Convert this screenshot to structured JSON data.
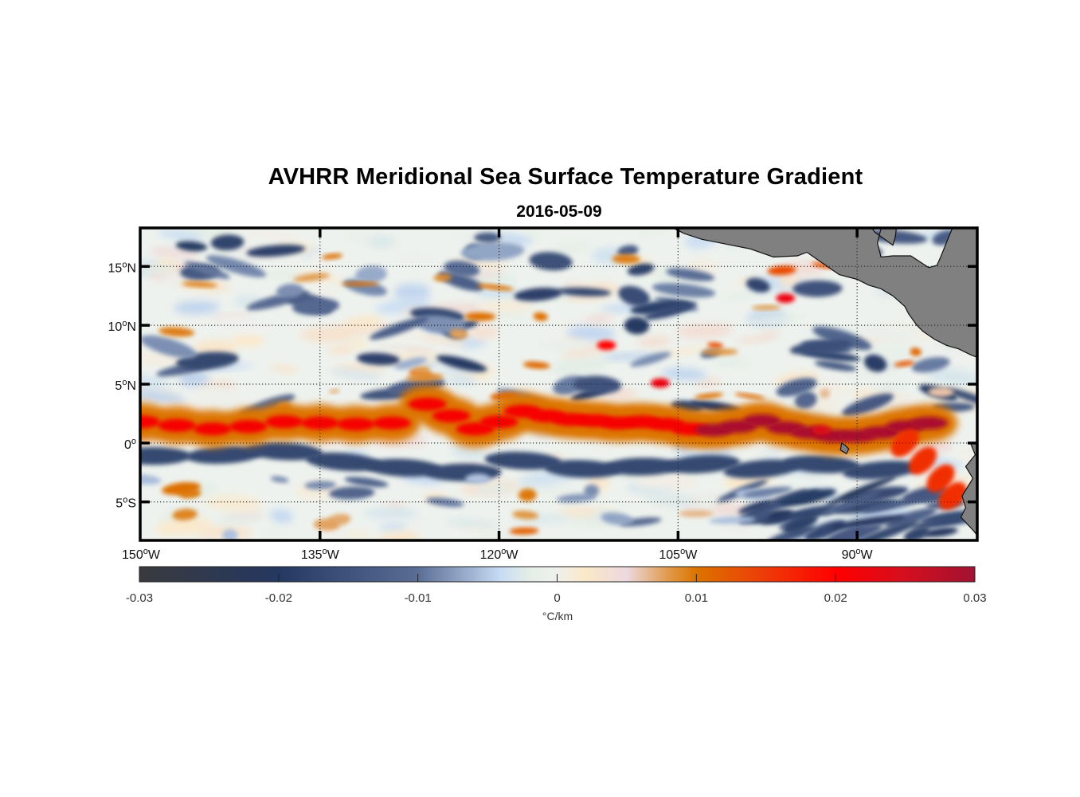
{
  "figure": {
    "title": "AVHRR Meridional Sea Surface Temperature Gradient",
    "subtitle": "2016-05-09"
  },
  "map": {
    "projection": "equirectangular",
    "lon_range_deg": [
      -150,
      -80
    ],
    "lat_range_deg": [
      -8.2,
      18.2
    ],
    "grid": true,
    "grid_style": "dotted",
    "land_color": "#808080",
    "frame_color": "#000000",
    "lat_ticks": [
      {
        "value": 15,
        "label": "15",
        "suffix": "N"
      },
      {
        "value": 10,
        "label": "10",
        "suffix": "N"
      },
      {
        "value": 5,
        "label": "5",
        "suffix": "N"
      },
      {
        "value": 0,
        "label": "0",
        "suffix": ""
      },
      {
        "value": -5,
        "label": "5",
        "suffix": "S"
      }
    ],
    "lon_ticks": [
      {
        "value": -150,
        "label": "150",
        "suffix": "W"
      },
      {
        "value": -135,
        "label": "135",
        "suffix": "W"
      },
      {
        "value": -120,
        "label": "120",
        "suffix": "W"
      },
      {
        "value": -105,
        "label": "105",
        "suffix": "W"
      },
      {
        "value": -90,
        "label": "90",
        "suffix": "W"
      }
    ],
    "degree_symbol": "o",
    "features": {
      "equatorial_front": {
        "description": "Strong positive gradient band (warm front) near 1-2°N across basin",
        "approx_value": 0.025
      },
      "south_negative_band": {
        "description": "Negative gradient band just south of equator",
        "approx_value": -0.02
      }
    }
  },
  "colorbar": {
    "label": "°C/km",
    "range": [
      -0.03,
      0.03
    ],
    "ticks": [
      {
        "value": -0.03,
        "label": "-0.03"
      },
      {
        "value": -0.02,
        "label": "-0.02"
      },
      {
        "value": -0.01,
        "label": "-0.01"
      },
      {
        "value": 0,
        "label": "0"
      },
      {
        "value": 0.01,
        "label": "0.01"
      },
      {
        "value": 0.02,
        "label": "0.02"
      },
      {
        "value": 0.03,
        "label": "0.03"
      }
    ],
    "color_stops": [
      {
        "value": -0.03,
        "color": "#3a3a3e"
      },
      {
        "value": -0.02,
        "color": "#243861"
      },
      {
        "value": -0.01,
        "color": "#5a6d95"
      },
      {
        "value": -0.004,
        "color": "#c8dcf4"
      },
      {
        "value": -0.002,
        "color": "#e4eee6"
      },
      {
        "value": 0,
        "color": "#f0f0ee"
      },
      {
        "value": 0.002,
        "color": "#fbe8c8"
      },
      {
        "value": 0.005,
        "color": "#ecd9de"
      },
      {
        "value": 0.008,
        "color": "#e09a4a"
      },
      {
        "value": 0.01,
        "color": "#dc7400"
      },
      {
        "value": 0.015,
        "color": "#ee3a08"
      },
      {
        "value": 0.02,
        "color": "#ff0000"
      },
      {
        "value": 0.025,
        "color": "#d40e1e"
      },
      {
        "value": 0.03,
        "color": "#a01232"
      }
    ]
  }
}
